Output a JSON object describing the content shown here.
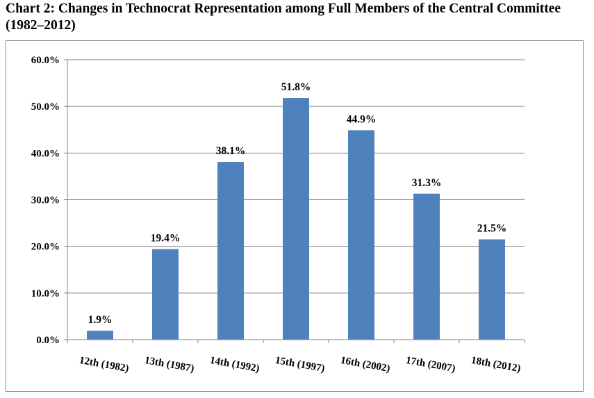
{
  "chart_data": {
    "type": "bar",
    "title": "Chart 2: Changes in Technocrat Representation among Full Members of the Central Committee (1982–2012)",
    "xlabel": "",
    "ylabel": "",
    "categories": [
      "12th (1982)",
      "13th (1987)",
      "14th (1992)",
      "15th (1997)",
      "16th (2002)",
      "17th (2007)",
      "18th (2012)"
    ],
    "values": [
      1.9,
      19.4,
      38.1,
      51.8,
      44.9,
      31.3,
      21.5
    ],
    "data_labels": [
      "1.9%",
      "19.4%",
      "38.1%",
      "51.8%",
      "44.9%",
      "31.3%",
      "21.5%"
    ],
    "ylim": [
      0,
      60
    ],
    "y_ticks": [
      0,
      10,
      20,
      30,
      40,
      50,
      60
    ],
    "y_tick_labels": [
      "0.0%",
      "10.0%",
      "20.0%",
      "30.0%",
      "40.0%",
      "50.0%",
      "60.0%"
    ],
    "grid": true,
    "legend": "none",
    "bar_color": "#4f81bd",
    "grid_color": "#868686"
  }
}
